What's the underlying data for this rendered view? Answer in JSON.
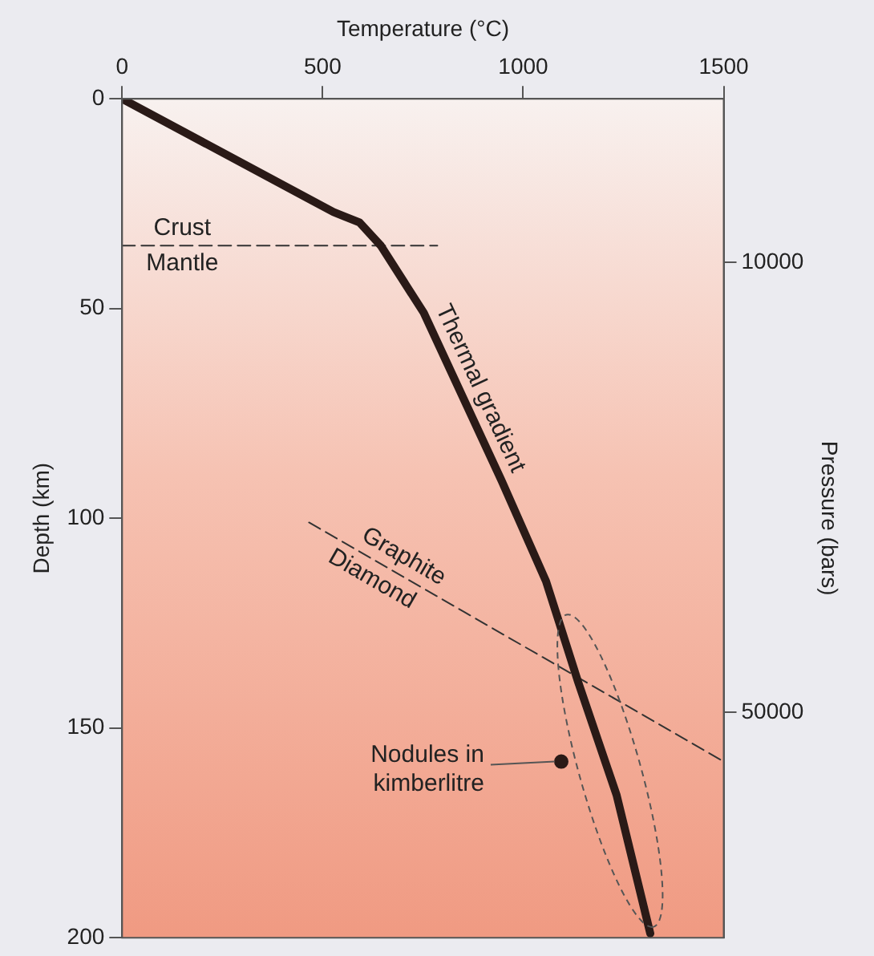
{
  "chart_data": {
    "type": "line",
    "xlabel": "Temperature (°C)",
    "ylabel": "Depth (km)",
    "y2label": "Pressure (bars)",
    "xlim": [
      0,
      1500
    ],
    "xticks": [
      0,
      500,
      1000,
      1500
    ],
    "ylim": [
      200,
      0
    ],
    "yticks": [
      0,
      50,
      100,
      150,
      200
    ],
    "y2lim": [
      70000,
      -4500
    ],
    "y2ticks": [
      10000,
      50000
    ],
    "grid": false,
    "series": [
      {
        "name": "Thermal gradient",
        "color": "#2a1a17",
        "line_style": "solid",
        "x": [
          0,
          527,
          553,
          592,
          645,
          752,
          946,
          1057,
          1137,
          1233,
          1317
        ],
        "values": [
          0,
          27,
          28,
          29.5,
          35,
          51,
          91,
          115,
          139,
          166,
          199
        ]
      },
      {
        "color": "#333333",
        "line_style": "dashed",
        "x": [
          0,
          786
        ],
        "values": [
          35,
          35
        ]
      },
      {
        "color": "#333333",
        "line_style": "dashed",
        "x": [
          466,
          1500
        ],
        "values": [
          101,
          158
        ]
      },
      {
        "type": "scatter",
        "color": "#2a1a17",
        "marker": "circle",
        "x": [
          1095
        ],
        "values": [
          158
        ]
      }
    ],
    "annotations": [
      {
        "text": "Crust",
        "x": 150,
        "y": 35
      },
      {
        "text": "Mantle",
        "x": 150,
        "y": 35
      },
      {
        "text": "Graphite",
        "x": 680,
        "y": 112.8
      },
      {
        "text": "Diamond",
        "x": 645,
        "y": 110.9
      },
      {
        "text": "Nodules in kimberlitre",
        "x": 1095,
        "y": 158
      }
    ]
  }
}
